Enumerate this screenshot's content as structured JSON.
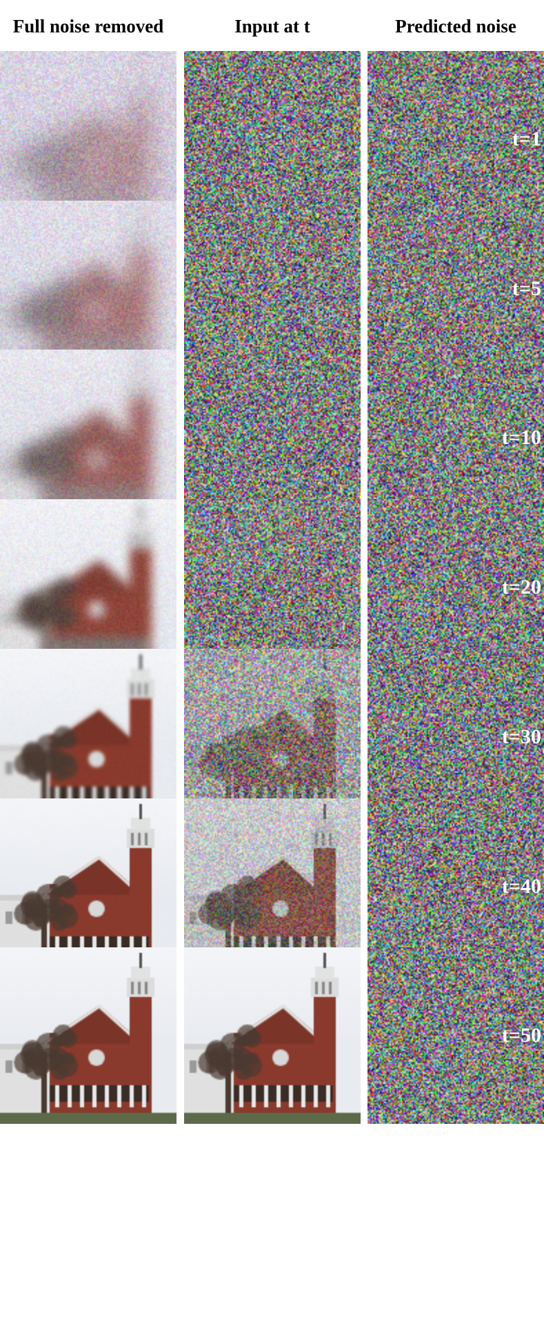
{
  "headers": {
    "full_noise_removed": "Full noise removed",
    "input_at_t": "Input at t",
    "predicted_noise": "Predicted noise"
  },
  "rows": [
    {
      "t_label": "t=1",
      "reconstruction_clarity": 0.08,
      "input_signal": 0.0
    },
    {
      "t_label": "t=5",
      "reconstruction_clarity": 0.25,
      "input_signal": 0.0
    },
    {
      "t_label": "t=10",
      "reconstruction_clarity": 0.42,
      "input_signal": 0.0
    },
    {
      "t_label": "t=20",
      "reconstruction_clarity": 0.62,
      "input_signal": 0.04
    },
    {
      "t_label": "t=30",
      "reconstruction_clarity": 0.9,
      "input_signal": 0.3
    },
    {
      "t_label": "t=40",
      "reconstruction_clarity": 0.97,
      "input_signal": 0.62
    },
    {
      "t_label": "t=50",
      "reconstruction_clarity": 1.0,
      "input_signal": 1.0
    }
  ],
  "colors": {
    "sky": "#e8ebf0",
    "brick": "#8a3a2c",
    "white_building": "#e0e0e0",
    "tree": "#4a3a32",
    "lawn": "#5d6a4a",
    "haze": "#c9c0d6"
  }
}
